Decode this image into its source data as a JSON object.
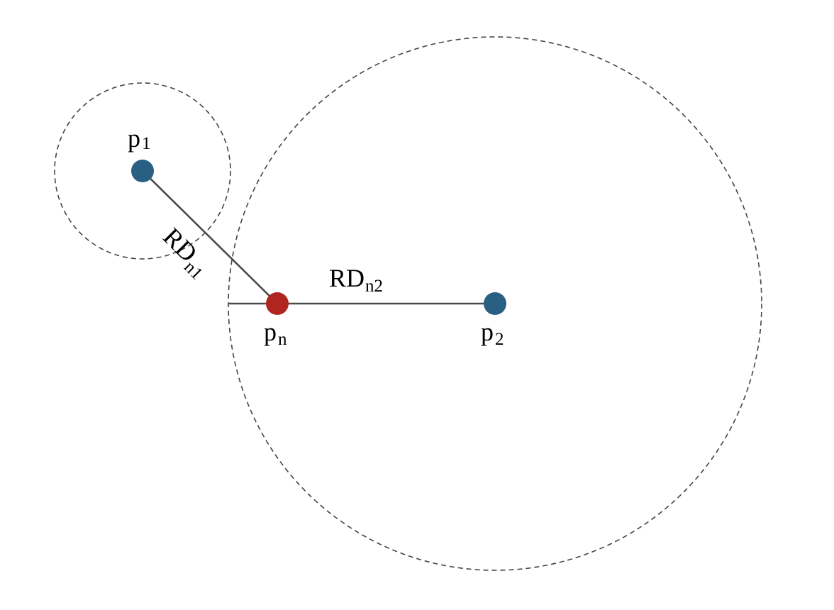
{
  "colors": {
    "background": "#ffffff",
    "blue_point": "#285f82",
    "red_point": "#b0251f",
    "segment": "#4a4a4a",
    "circle_stroke": "#444444",
    "text": "#000000"
  },
  "points": {
    "p1": {
      "base": "p",
      "sub": "1"
    },
    "pn": {
      "base": "p",
      "sub": "n"
    },
    "p2": {
      "base": "p",
      "sub": "2"
    }
  },
  "segments": {
    "rd_n1": {
      "base": "RD",
      "sub": "n1"
    },
    "rd_n2": {
      "base": "RD",
      "sub": "n2"
    }
  },
  "circles": {
    "small": {
      "center": "p1",
      "style": "dashed"
    },
    "large": {
      "center": "p2",
      "style": "dashed"
    }
  }
}
